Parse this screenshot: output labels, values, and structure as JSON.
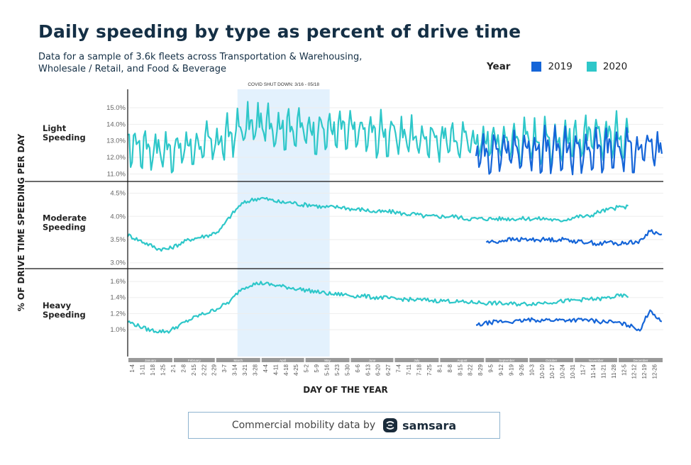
{
  "header": {
    "title": "Daily speeding by type as percent of drive time",
    "subtitle": "Data for a sample of 3.6k fleets across Transportation & Warehousing, Wholesale / Retail, and Food & Beverage"
  },
  "legend": {
    "title": "Year",
    "items": [
      {
        "label": "2019",
        "color": "#1565d8"
      },
      {
        "label": "2020",
        "color": "#2ec7c9"
      }
    ]
  },
  "footer": {
    "text": "Commercial mobility data by",
    "brand": "samsara",
    "logo_icon": "samsara-logo-icon"
  },
  "chart_data": {
    "type": "line",
    "ylabel": "% OF DRIVE TIME SPEEDING PER DAY",
    "xlabel": "DAY OF THE YEAR",
    "annotation": {
      "label": "COVID SHUT DOWN: 3/16 - 05/18",
      "start": "3-16",
      "end": "5-18"
    },
    "months": [
      "January",
      "February",
      "March",
      "April",
      "May",
      "June",
      "July",
      "August",
      "September",
      "October",
      "November",
      "December"
    ],
    "x_tick_labels": [
      "1-4",
      "1-11",
      "1-18",
      "1-25",
      "2-1",
      "2-8",
      "2-15",
      "2-22",
      "2-29",
      "3-7",
      "3-14",
      "3-21",
      "3-28",
      "4-4",
      "4-11",
      "4-18",
      "4-25",
      "5-2",
      "5-9",
      "5-16",
      "5-23",
      "5-30",
      "6-6",
      "6-13",
      "6-20",
      "6-27",
      "7-4",
      "7-11",
      "7-18",
      "7-25",
      "8-1",
      "8-8",
      "8-15",
      "8-22",
      "8-29",
      "9-5",
      "9-12",
      "9-19",
      "9-26",
      "10-3",
      "10-10",
      "10-17",
      "10-24",
      "10-31",
      "11-7",
      "11-14",
      "11-21",
      "11-28",
      "12-5",
      "12-12",
      "12-19",
      "12-26"
    ],
    "x_range": [
      "1-1",
      "12-31"
    ],
    "panels": [
      {
        "name": "Light Speeding",
        "ylim": [
          10.8,
          15.6
        ],
        "y_ticks": [
          "11.0%",
          "12.0%",
          "13.0%",
          "14.0%",
          "15.0%"
        ],
        "series": [
          {
            "name": "2020",
            "color": "#2ec7c9",
            "start_week": 0,
            "end_week": 48,
            "weekly_avg": [
              13.0,
              12.9,
              12.8,
              12.7,
              12.6,
              12.7,
              12.8,
              12.9,
              13.0,
              13.1,
              13.5,
              13.9,
              14.1,
              14.2,
              14.1,
              14.0,
              14.0,
              13.9,
              13.8,
              13.8,
              13.8,
              13.8,
              13.7,
              13.7,
              13.6,
              13.6,
              13.5,
              13.5,
              13.4,
              13.4,
              13.3,
              13.3,
              13.2,
              13.2,
              13.2,
              13.2,
              13.2,
              13.2,
              13.2,
              13.2,
              13.2,
              13.2,
              13.2,
              13.3,
              13.3,
              13.4,
              13.4,
              13.5,
              13.5
            ]
          },
          {
            "name": "2019",
            "color": "#1565d8",
            "start_week": 34,
            "end_week": 52,
            "weekly_avg": [
              12.4,
              12.5,
              12.6,
              12.6,
              12.6,
              12.7,
              12.7,
              12.6,
              12.6,
              12.5,
              12.6,
              12.6,
              12.5,
              12.7,
              12.6,
              12.6,
              12.8,
              12.7,
              12.5
            ]
          }
        ]
      },
      {
        "name": "Moderate Speeding",
        "ylim": [
          2.95,
          4.6
        ],
        "y_ticks": [
          "3.0%",
          "3.5%",
          "4.0%",
          "4.5%"
        ],
        "series": [
          {
            "name": "2020",
            "color": "#2ec7c9",
            "start_week": 0,
            "end_week": 48,
            "weekly_avg": [
              3.6,
              3.5,
              3.4,
              3.3,
              3.3,
              3.4,
              3.5,
              3.55,
              3.6,
              3.7,
              4.0,
              4.25,
              4.35,
              4.4,
              4.35,
              4.3,
              4.3,
              4.25,
              4.25,
              4.2,
              4.2,
              4.2,
              4.15,
              4.15,
              4.1,
              4.1,
              4.1,
              4.05,
              4.05,
              4.0,
              4.0,
              4.0,
              4.0,
              3.95,
              3.95,
              3.95,
              3.95,
              3.95,
              3.95,
              3.95,
              3.95,
              3.95,
              3.9,
              3.95,
              4.0,
              4.0,
              4.1,
              4.15,
              4.2
            ]
          },
          {
            "name": "2019",
            "color": "#1565d8",
            "start_week": 35,
            "end_week": 52,
            "weekly_avg": [
              3.45,
              3.45,
              3.5,
              3.5,
              3.5,
              3.5,
              3.5,
              3.5,
              3.5,
              3.45,
              3.45,
              3.4,
              3.45,
              3.4,
              3.45,
              3.45,
              3.7,
              3.6
            ]
          }
        ]
      },
      {
        "name": "Heavy Speeding",
        "ylim": [
          0.78,
          1.68
        ],
        "y_ticks": [
          "1.0%",
          "1.2%",
          "1.4%",
          "1.6%"
        ],
        "series": [
          {
            "name": "2020",
            "color": "#2ec7c9",
            "start_week": 0,
            "end_week": 48,
            "weekly_avg": [
              1.1,
              1.05,
              1.0,
              0.98,
              0.98,
              1.05,
              1.12,
              1.18,
              1.22,
              1.28,
              1.35,
              1.5,
              1.56,
              1.58,
              1.56,
              1.54,
              1.52,
              1.5,
              1.48,
              1.46,
              1.44,
              1.44,
              1.42,
              1.42,
              1.4,
              1.4,
              1.38,
              1.38,
              1.37,
              1.37,
              1.36,
              1.36,
              1.35,
              1.34,
              1.34,
              1.33,
              1.33,
              1.32,
              1.32,
              1.32,
              1.33,
              1.34,
              1.35,
              1.36,
              1.37,
              1.38,
              1.38,
              1.4,
              1.42
            ]
          },
          {
            "name": "2019",
            "color": "#1565d8",
            "start_week": 34,
            "end_week": 52,
            "weekly_avg": [
              1.05,
              1.08,
              1.1,
              1.1,
              1.1,
              1.12,
              1.12,
              1.12,
              1.12,
              1.12,
              1.12,
              1.12,
              1.1,
              1.1,
              1.08,
              1.05,
              1.0,
              1.25,
              1.1
            ]
          }
        ]
      }
    ]
  }
}
